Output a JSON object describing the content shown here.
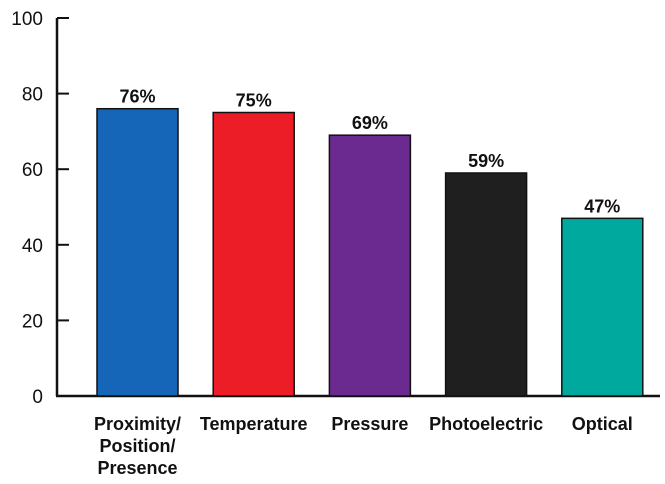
{
  "chart_data": {
    "type": "bar",
    "title": "",
    "xlabel": "",
    "ylabel": "",
    "ylim": [
      0,
      100
    ],
    "yticks": [
      0,
      20,
      40,
      60,
      80,
      100
    ],
    "grid": false,
    "legend": "none",
    "categories": [
      [
        "Proximity/",
        "Position/",
        "Presence"
      ],
      [
        "Temperature"
      ],
      [
        "Pressure"
      ],
      [
        "Photoelectric"
      ],
      [
        "Optical"
      ]
    ],
    "values": [
      76,
      75,
      69,
      59,
      47
    ],
    "data_labels": [
      "76%",
      "75%",
      "69%",
      "59%",
      "47%"
    ],
    "colors": [
      "#1565b8",
      "#ec1d27",
      "#6b2a8f",
      "#1f1f1f",
      "#00a99d"
    ]
  }
}
